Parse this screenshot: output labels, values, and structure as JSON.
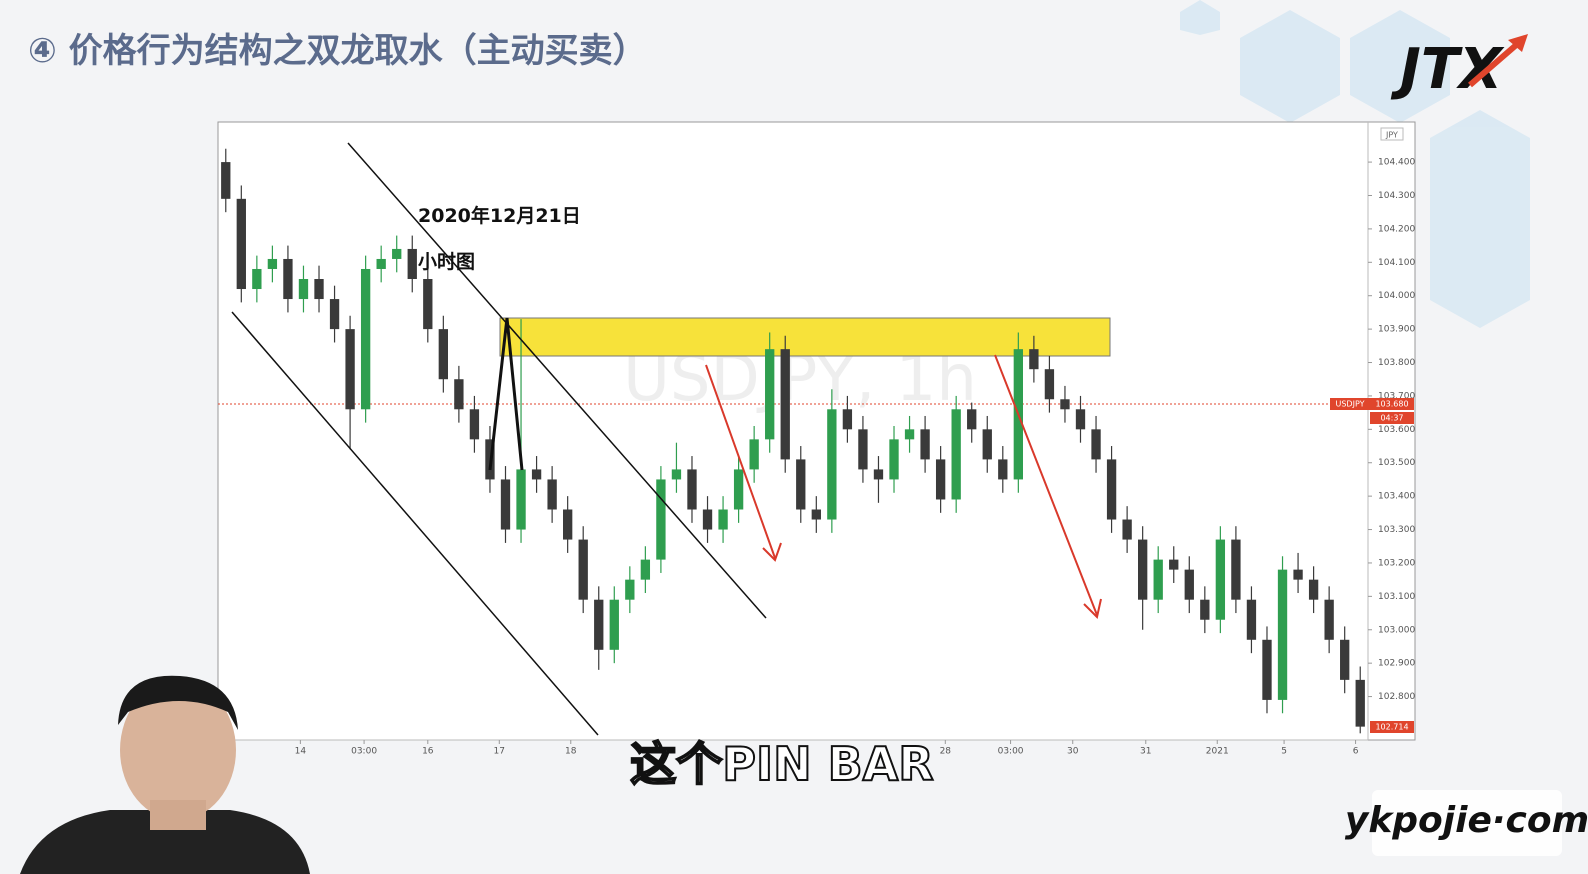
{
  "header": {
    "title": "④ 价格行为结构之双龙取水（主动买卖）",
    "logo": "JTX"
  },
  "caption": "这个PIN BAR",
  "watermark": "ykpojie·com",
  "chart_data": {
    "type": "candlestick",
    "annotations": [
      "2020年12月21日",
      "小时图"
    ],
    "symbol_watermark": "USDJPY, 1h",
    "currency_badge": "JPY",
    "price_tag": {
      "symbol": "USDJPY",
      "price": "103.680",
      "countdown": "04:37"
    },
    "last_price": "102.714",
    "up_color": "#2f9e4f",
    "down_color": "#3a3a3a",
    "x": [
      0,
      1,
      2,
      3,
      4,
      5,
      6,
      7,
      8,
      9,
      10,
      11,
      12,
      13,
      14,
      15,
      16,
      17,
      18,
      19,
      20,
      21,
      22,
      23,
      24,
      25,
      26,
      27,
      28,
      29,
      30,
      31,
      32,
      33,
      34,
      35,
      36,
      37,
      38,
      39,
      40,
      41,
      42,
      43,
      44,
      45,
      46,
      47,
      48,
      49,
      50,
      51,
      52,
      53,
      54,
      55,
      56,
      57,
      58,
      59,
      60,
      61,
      62,
      63,
      64,
      65,
      66,
      67,
      68,
      69,
      70,
      71,
      72,
      73
    ],
    "open": [
      104.4,
      104.29,
      104.02,
      104.08,
      104.11,
      103.99,
      104.05,
      103.99,
      103.9,
      103.66,
      104.08,
      104.11,
      104.14,
      104.05,
      103.9,
      103.75,
      103.66,
      103.57,
      103.45,
      103.3,
      103.48,
      103.45,
      103.36,
      103.27,
      103.09,
      102.94,
      103.09,
      103.15,
      103.21,
      103.45,
      103.48,
      103.36,
      103.3,
      103.36,
      103.48,
      103.57,
      103.84,
      103.51,
      103.36,
      103.33,
      103.66,
      103.6,
      103.48,
      103.45,
      103.57,
      103.6,
      103.51,
      103.39,
      103.66,
      103.6,
      103.51,
      103.45,
      103.84,
      103.78,
      103.69,
      103.66,
      103.6,
      103.51,
      103.33,
      103.27,
      103.09,
      103.21,
      103.18,
      103.09,
      103.03,
      103.27,
      103.09,
      102.97,
      102.79,
      103.18,
      103.15,
      103.09,
      102.97,
      102.85
    ],
    "high": [
      104.44,
      104.33,
      104.12,
      104.15,
      104.15,
      104.09,
      104.09,
      104.03,
      103.94,
      104.12,
      104.15,
      104.18,
      104.18,
      104.09,
      103.94,
      103.79,
      103.7,
      103.61,
      103.49,
      103.93,
      103.52,
      103.49,
      103.4,
      103.31,
      103.13,
      103.13,
      103.19,
      103.25,
      103.49,
      103.56,
      103.52,
      103.4,
      103.4,
      103.52,
      103.61,
      103.89,
      103.88,
      103.55,
      103.4,
      103.72,
      103.7,
      103.64,
      103.52,
      103.61,
      103.64,
      103.64,
      103.55,
      103.7,
      103.68,
      103.64,
      103.55,
      103.89,
      103.88,
      103.82,
      103.73,
      103.7,
      103.64,
      103.55,
      103.37,
      103.31,
      103.25,
      103.25,
      103.22,
      103.13,
      103.31,
      103.31,
      103.13,
      103.01,
      103.22,
      103.23,
      103.19,
      103.13,
      103.01,
      102.89
    ],
    "low": [
      104.25,
      103.98,
      103.98,
      104.04,
      103.95,
      103.95,
      103.95,
      103.86,
      103.54,
      103.62,
      104.04,
      104.07,
      104.01,
      103.86,
      103.71,
      103.62,
      103.53,
      103.41,
      103.26,
      103.26,
      103.41,
      103.32,
      103.23,
      103.05,
      102.88,
      102.9,
      103.05,
      103.11,
      103.17,
      103.41,
      103.32,
      103.26,
      103.26,
      103.32,
      103.44,
      103.53,
      103.47,
      103.32,
      103.29,
      103.29,
      103.56,
      103.44,
      103.38,
      103.41,
      103.53,
      103.47,
      103.35,
      103.35,
      103.56,
      103.47,
      103.41,
      103.41,
      103.74,
      103.65,
      103.62,
      103.56,
      103.47,
      103.29,
      103.23,
      103.0,
      103.05,
      103.14,
      103.05,
      102.99,
      102.99,
      103.05,
      102.93,
      102.75,
      102.75,
      103.11,
      103.05,
      102.93,
      102.81,
      102.69
    ],
    "close": [
      104.29,
      104.02,
      104.08,
      104.11,
      103.99,
      104.05,
      103.99,
      103.9,
      103.66,
      104.08,
      104.11,
      104.14,
      104.05,
      103.9,
      103.75,
      103.66,
      103.57,
      103.45,
      103.3,
      103.48,
      103.45,
      103.36,
      103.27,
      103.09,
      102.94,
      103.09,
      103.15,
      103.21,
      103.45,
      103.48,
      103.36,
      103.3,
      103.36,
      103.48,
      103.57,
      103.84,
      103.51,
      103.36,
      103.33,
      103.66,
      103.6,
      103.48,
      103.45,
      103.57,
      103.6,
      103.51,
      103.39,
      103.66,
      103.6,
      103.51,
      103.45,
      103.84,
      103.78,
      103.69,
      103.66,
      103.6,
      103.51,
      103.33,
      103.27,
      103.09,
      103.21,
      103.18,
      103.09,
      103.03,
      103.27,
      103.09,
      102.97,
      102.79,
      103.18,
      103.15,
      103.09,
      102.97,
      102.85,
      102.71
    ],
    "xlim": [
      -0.5,
      73.5
    ],
    "xticks": [
      {
        "value": 4.8,
        "label": "14"
      },
      {
        "value": 8.9,
        "label": "03:00"
      },
      {
        "value": 13,
        "label": "16"
      },
      {
        "value": 17.6,
        "label": "17"
      },
      {
        "value": 22.2,
        "label": "18"
      },
      {
        "value": 46.3,
        "label": "28"
      },
      {
        "value": 50.5,
        "label": "03:00"
      },
      {
        "value": 54.5,
        "label": "30"
      },
      {
        "value": 59.2,
        "label": "31"
      },
      {
        "value": 63.8,
        "label": "2021"
      },
      {
        "value": 68.1,
        "label": "5"
      },
      {
        "value": 72.7,
        "label": "6"
      }
    ],
    "ylim": [
      102.67,
      104.52
    ],
    "yticks": [
      {
        "value": 104.4,
        "label": "104.400"
      },
      {
        "value": 104.3,
        "label": "104.300"
      },
      {
        "value": 104.2,
        "label": "104.200"
      },
      {
        "value": 104.1,
        "label": "104.100"
      },
      {
        "value": 104.0,
        "label": "104.000"
      },
      {
        "value": 103.9,
        "label": "103.900"
      },
      {
        "value": 103.8,
        "label": "103.800"
      },
      {
        "value": 103.7,
        "label": "103.700"
      },
      {
        "value": 103.6,
        "label": "103.600"
      },
      {
        "value": 103.5,
        "label": "103.500"
      },
      {
        "value": 103.4,
        "label": "103.400"
      },
      {
        "value": 103.3,
        "label": "103.300"
      },
      {
        "value": 103.2,
        "label": "103.200"
      },
      {
        "value": 103.1,
        "label": "103.100"
      },
      {
        "value": 103.0,
        "label": "103.000"
      },
      {
        "value": 102.9,
        "label": "102.900"
      },
      {
        "value": 102.8,
        "label": "102.800"
      }
    ],
    "grid": false
  }
}
